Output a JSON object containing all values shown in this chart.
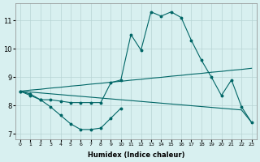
{
  "x": [
    0,
    1,
    2,
    3,
    4,
    5,
    6,
    7,
    8,
    9,
    10,
    11,
    12,
    13,
    14,
    15,
    16,
    17,
    18,
    19,
    20,
    21,
    22,
    23
  ],
  "line1": [
    8.5,
    8.4,
    8.2,
    8.2,
    8.15,
    8.1,
    8.1,
    8.1,
    8.1,
    8.8,
    8.9,
    10.5,
    9.95,
    11.3,
    11.15,
    11.3,
    11.1,
    10.3,
    9.6,
    9.0,
    8.35,
    8.9,
    7.95,
    7.4
  ],
  "line2_x": [
    0,
    1,
    2,
    3,
    4,
    5,
    6,
    7,
    8,
    9,
    10
  ],
  "line2_y": [
    8.5,
    8.35,
    8.2,
    7.95,
    7.65,
    7.35,
    7.15,
    7.15,
    7.2,
    7.55,
    7.9
  ],
  "line3_x": [
    0,
    1,
    2,
    3,
    4,
    5,
    6,
    7,
    8,
    9,
    10,
    11,
    12,
    13,
    14,
    15,
    16,
    17,
    18,
    19,
    20,
    21,
    22,
    23
  ],
  "line3_y": [
    8.5,
    8.54,
    8.57,
    8.61,
    8.64,
    8.68,
    8.71,
    8.75,
    8.78,
    8.82,
    8.85,
    8.89,
    8.92,
    8.96,
    8.99,
    9.03,
    9.06,
    9.1,
    9.13,
    9.17,
    9.2,
    9.24,
    9.27,
    9.31
  ],
  "line4_x": [
    0,
    1,
    2,
    3,
    4,
    5,
    6,
    7,
    8,
    9,
    10,
    11,
    12,
    13,
    14,
    15,
    16,
    17,
    18,
    19,
    20,
    21,
    22,
    23
  ],
  "line4_y": [
    8.5,
    8.47,
    8.44,
    8.41,
    8.38,
    8.35,
    8.32,
    8.29,
    8.26,
    8.23,
    8.2,
    8.17,
    8.14,
    8.11,
    8.08,
    8.05,
    8.02,
    7.99,
    7.96,
    7.93,
    7.9,
    7.87,
    7.84,
    7.4
  ],
  "color": "#006666",
  "bg_color": "#d8f0f0",
  "grid_color": "#b8d4d4",
  "xlabel": "Humidex (Indice chaleur)",
  "xlim": [
    -0.5,
    23.5
  ],
  "ylim": [
    6.8,
    11.6
  ],
  "yticks": [
    7,
    8,
    9,
    10,
    11
  ],
  "xticks": [
    0,
    1,
    2,
    3,
    4,
    5,
    6,
    7,
    8,
    9,
    10,
    11,
    12,
    13,
    14,
    15,
    16,
    17,
    18,
    19,
    20,
    21,
    22,
    23
  ]
}
